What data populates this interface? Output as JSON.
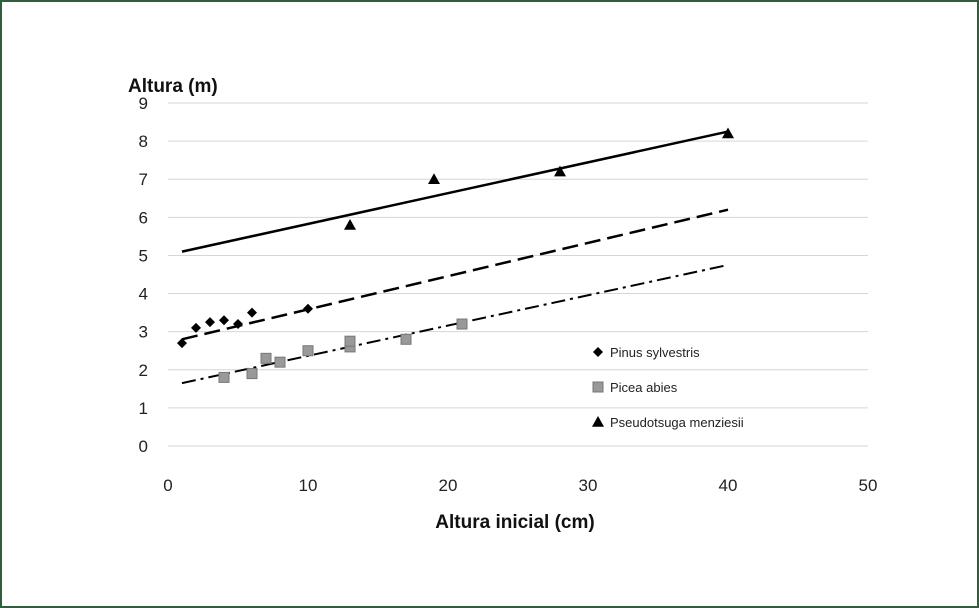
{
  "chart_data": {
    "type": "scatter",
    "ylabel": "Altura (m)",
    "xlabel": "Altura inicial (cm)",
    "xlim": [
      0,
      50
    ],
    "ylim": [
      0,
      9
    ],
    "x_ticks": [
      0,
      10,
      20,
      30,
      40,
      50
    ],
    "y_ticks": [
      0,
      1,
      2,
      3,
      4,
      5,
      6,
      7,
      8,
      9
    ],
    "grid": "horizontal",
    "legend_position": "right",
    "series": [
      {
        "name": "Pinus sylvestris",
        "marker": "diamond",
        "color": "#000000",
        "points": [
          [
            1,
            2.7
          ],
          [
            2,
            3.1
          ],
          [
            3,
            3.25
          ],
          [
            4,
            3.3
          ],
          [
            5,
            3.2
          ],
          [
            6,
            3.5
          ],
          [
            10,
            3.6
          ]
        ],
        "trendline": {
          "style": "dashed",
          "x": [
            1,
            40
          ],
          "y": [
            2.8,
            6.2
          ]
        }
      },
      {
        "name": "Picea abies",
        "marker": "square",
        "color": "#999999",
        "points": [
          [
            4,
            1.8
          ],
          [
            6,
            1.9
          ],
          [
            7,
            2.3
          ],
          [
            8,
            2.2
          ],
          [
            10,
            2.5
          ],
          [
            13,
            2.6
          ],
          [
            13,
            2.75
          ],
          [
            17,
            2.8
          ],
          [
            21,
            3.2
          ]
        ],
        "trendline": {
          "style": "dash-dot",
          "x": [
            1,
            40
          ],
          "y": [
            1.65,
            4.75
          ]
        }
      },
      {
        "name": "Pseudotsuga menziesii",
        "marker": "triangle",
        "color": "#000000",
        "points": [
          [
            13,
            5.8
          ],
          [
            19,
            7.0
          ],
          [
            28,
            7.2
          ],
          [
            40,
            8.2
          ]
        ],
        "trendline": {
          "style": "solid",
          "x": [
            1,
            40
          ],
          "y": [
            5.1,
            8.25
          ]
        }
      }
    ]
  }
}
